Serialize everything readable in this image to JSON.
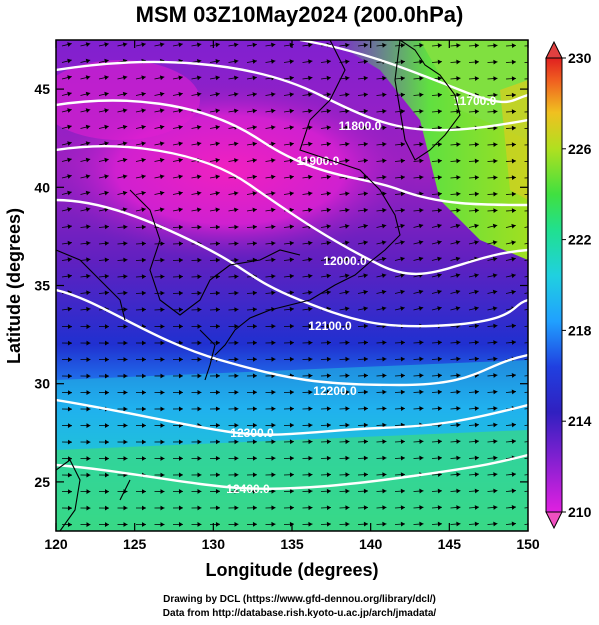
{
  "title": "MSM 03Z10May2024 (200.0hPa)",
  "x_axis": {
    "label": "Longitude (degrees)",
    "ticks": [
      "120",
      "125",
      "130",
      "135",
      "140",
      "145",
      "150"
    ],
    "range": [
      120,
      150
    ]
  },
  "y_axis": {
    "label": "Latitude  (degrees)",
    "ticks": [
      "25",
      "30",
      "35",
      "40",
      "45"
    ],
    "range": [
      22.5,
      47.5
    ]
  },
  "colorbar": {
    "ticks": [
      "230",
      "226",
      "222",
      "218",
      "214",
      "210"
    ],
    "min": 210,
    "max": 230,
    "colors": [
      "#e020e0",
      "#a020e0",
      "#5020d0",
      "#2030e0",
      "#2060ff",
      "#20a0ff",
      "#20d0e0",
      "#20e0a0",
      "#30e060",
      "#70e030",
      "#b0e020",
      "#e0d020",
      "#f0a020",
      "#f06020",
      "#e02020"
    ]
  },
  "contours": [
    {
      "label": "11700.0"
    },
    {
      "label": "11800.0"
    },
    {
      "label": "11900.0"
    },
    {
      "label": "12000.0"
    },
    {
      "label": "12100.0"
    },
    {
      "label": "12200.0"
    },
    {
      "label": "12300.0"
    },
    {
      "label": "12400.0"
    }
  ],
  "footer": {
    "line1": "Drawing by DCL (https://www.gfd-dennou.org/library/dcl/)",
    "line2": "Data from http://database.rish.kyoto-u.ac.jp/arch/jmadata/"
  },
  "colors": {
    "pink": "#f020d0",
    "purple": "#8020c0",
    "blue": "#2040e0",
    "cyan": "#20d0e0",
    "green": "#40e060"
  }
}
